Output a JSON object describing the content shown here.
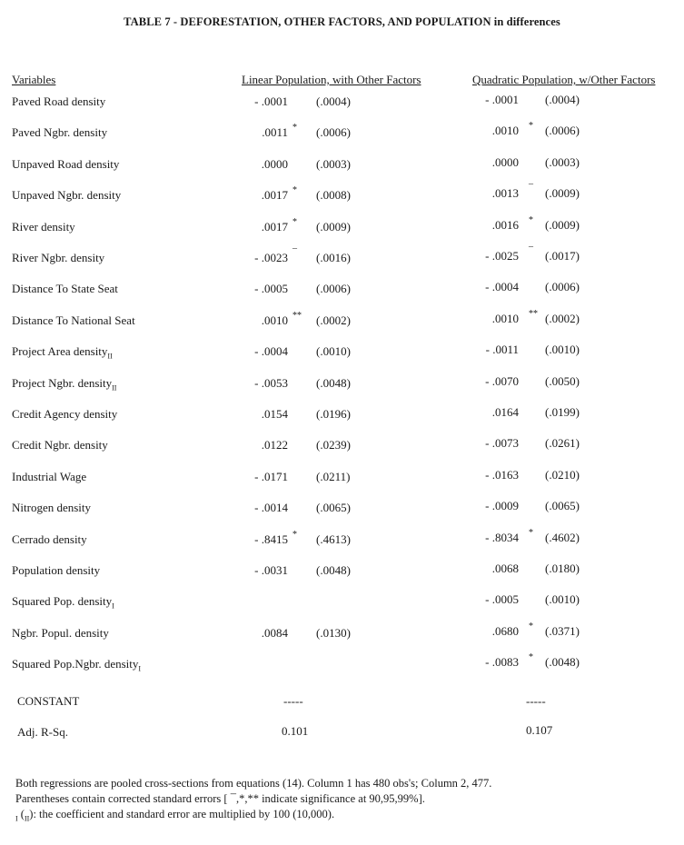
{
  "title": "TABLE 7 - DEFORESTATION, OTHER FACTORS, AND POPULATION in differences",
  "headers": {
    "variables": "Variables",
    "col1": "Linear Population, with Other Factors",
    "col2": "Quadratic Population, w/Other Factors"
  },
  "rows": [
    {
      "label": "Paved Road density",
      "sub": "",
      "c1": "- .0001",
      "m1": "",
      "s1": "(.0004)",
      "c2": "- .0001",
      "m2": "",
      "s2": "(.0004)"
    },
    {
      "label": "Paved Ngbr. density",
      "sub": "",
      "c1": ".0011",
      "m1": "*",
      "s1": "(.0006)",
      "c2": ".0010",
      "m2": "*",
      "s2": "(.0006)"
    },
    {
      "label": "Unpaved Road density",
      "sub": "",
      "c1": ".0000",
      "m1": "",
      "s1": "(.0003)",
      "c2": ".0000",
      "m2": "",
      "s2": "(.0003)"
    },
    {
      "label": "Unpaved Ngbr. density",
      "sub": "",
      "c1": ".0017",
      "m1": "*",
      "s1": "(.0008)",
      "c2": ".0013",
      "m2": "¯",
      "s2": "(.0009)"
    },
    {
      "label": "River density",
      "sub": "",
      "c1": ".0017",
      "m1": "*",
      "s1": "(.0009)",
      "c2": ".0016",
      "m2": "*",
      "s2": "(.0009)"
    },
    {
      "label": "River Ngbr. density",
      "sub": "",
      "c1": "- .0023",
      "m1": "¯",
      "s1": "(.0016)",
      "c2": "- .0025",
      "m2": "¯",
      "s2": "(.0017)"
    },
    {
      "label": "Distance To State Seat",
      "sub": "",
      "c1": "- .0005",
      "m1": "",
      "s1": "(.0006)",
      "c2": "- .0004",
      "m2": "",
      "s2": "(.0006)"
    },
    {
      "label": "Distance To National Seat",
      "sub": "",
      "c1": ".0010",
      "m1": "**",
      "s1": "(.0002)",
      "c2": ".0010",
      "m2": "**",
      "s2": "(.0002)"
    },
    {
      "label": "Project Area density",
      "sub": "II",
      "c1": "- .0004",
      "m1": "",
      "s1": "(.0010)",
      "c2": "- .0011",
      "m2": "",
      "s2": "(.0010)"
    },
    {
      "label": "Project Ngbr. density",
      "sub": "II",
      "c1": "- .0053",
      "m1": "",
      "s1": "(.0048)",
      "c2": "- .0070",
      "m2": "",
      "s2": "(.0050)"
    },
    {
      "label": "Credit Agency density",
      "sub": "",
      "c1": ".0154",
      "m1": "",
      "s1": "(.0196)",
      "c2": ".0164",
      "m2": "",
      "s2": "(.0199)"
    },
    {
      "label": "Credit Ngbr. density",
      "sub": "",
      "c1": ".0122",
      "m1": "",
      "s1": "(.0239)",
      "c2": "- .0073",
      "m2": "",
      "s2": "(.0261)"
    },
    {
      "label": "Industrial Wage",
      "sub": "",
      "c1": "- .0171",
      "m1": "",
      "s1": "(.0211)",
      "c2": "- .0163",
      "m2": "",
      "s2": "(.0210)"
    },
    {
      "label": "Nitrogen density",
      "sub": "",
      "c1": "- .0014",
      "m1": "",
      "s1": "(.0065)",
      "c2": "- .0009",
      "m2": "",
      "s2": "(.0065)"
    },
    {
      "label": "Cerrado density",
      "sub": "",
      "c1": "- .8415",
      "m1": "*",
      "s1": "(.4613)",
      "c2": "- .8034",
      "m2": "*",
      "s2": "(.4602)"
    },
    {
      "label": "Population density",
      "sub": "",
      "c1": "- .0031",
      "m1": "",
      "s1": "(.0048)",
      "c2": ".0068",
      "m2": "",
      "s2": "(.0180)"
    },
    {
      "label": "Squared Pop. density",
      "sub": "I",
      "c1": "",
      "m1": "",
      "s1": "",
      "c2": "- .0005",
      "m2": "",
      "s2": "(.0010)"
    },
    {
      "label": "Ngbr. Popul. density",
      "sub": "",
      "c1": ".0084",
      "m1": "",
      "s1": "(.0130)",
      "c2": ".0680",
      "m2": "*",
      "s2": "(.0371)"
    },
    {
      "label": "Squared Pop.Ngbr. density",
      "sub": "I",
      "c1": "",
      "m1": "",
      "s1": "",
      "c2": "- .0083",
      "m2": "*",
      "s2": "(.0048)"
    }
  ],
  "constant": {
    "label": "CONSTANT",
    "c1": "-----",
    "c2": "-----"
  },
  "rsq": {
    "label": "Adj. R-Sq.",
    "c1": "0.101",
    "c2": "0.107"
  },
  "footnotes": [
    "Both regressions are pooled cross-sections from equations (14).  Column 1 has 480 obs's; Column 2, 477.",
    "Parentheses contain corrected standard errors  [ ¯,*,** indicate significance at 90,95,99%].",
    "): the coefficient and standard error are multiplied by 100 (10,000)."
  ],
  "footnote_subs": {
    "a": "I",
    "b": "II"
  }
}
